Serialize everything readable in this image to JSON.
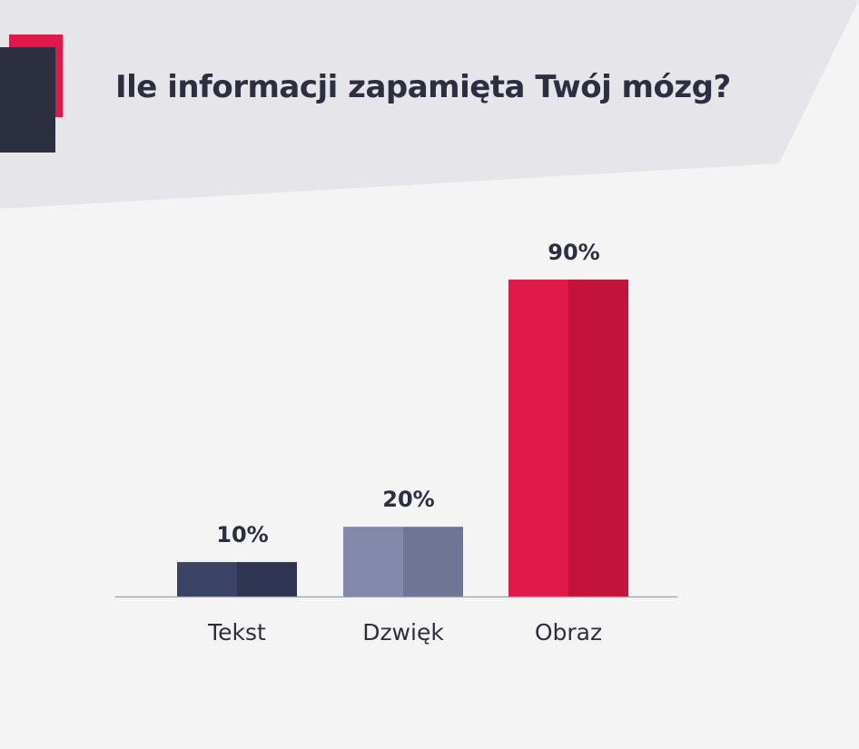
{
  "title": "Ile informacji zapamięta Twój mózg?",
  "colors": {
    "background": "#f4f4f4",
    "header_band": "#e6e5ea",
    "accent_red": "#e0194a",
    "accent_dark": "#2c2f3f",
    "axis": "#9a9cb8"
  },
  "chart_data": {
    "type": "bar",
    "title": "Ile informacji zapamięta Twój mózg?",
    "categories": [
      "Tekst",
      "Dzwięk",
      "Obraz"
    ],
    "values": [
      10,
      20,
      90
    ],
    "value_labels": [
      "10%",
      "20%",
      "90%"
    ],
    "unit": "%",
    "ylim": [
      0,
      100
    ],
    "grid": false,
    "legend": "none",
    "bar_colors": [
      {
        "light": "#3a4363",
        "dark": "#2f3452"
      },
      {
        "light": "#8389aa",
        "dark": "#6f7595"
      },
      {
        "light": "#e0194a",
        "dark": "#c4133b"
      }
    ]
  }
}
